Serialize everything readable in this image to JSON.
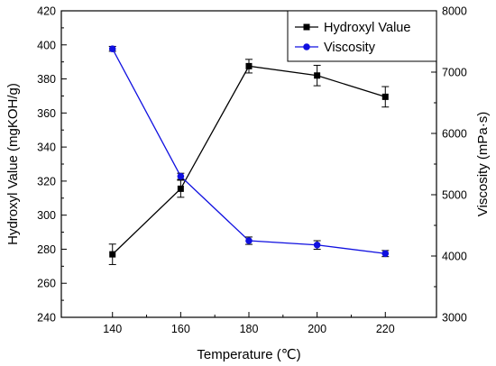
{
  "chart_data": {
    "type": "line",
    "x": [
      140,
      160,
      180,
      200,
      220
    ],
    "xlabel": "Temperature (℃)",
    "ylabel_left": "Hydroxyl Value (mgKOH/g)",
    "ylabel_right": "Viscosity (mPa·s)",
    "xlim": [
      125,
      235
    ],
    "ylim_left": [
      240,
      420
    ],
    "ylim_right": [
      3000,
      8000
    ],
    "x_ticks": [
      140,
      160,
      180,
      200,
      220
    ],
    "y_ticks_left": [
      240,
      260,
      280,
      300,
      320,
      340,
      360,
      380,
      400,
      420
    ],
    "y_ticks_right": [
      3000,
      4000,
      5000,
      6000,
      7000,
      8000
    ],
    "grid": false,
    "legend_position": "top-right",
    "series": [
      {
        "name": "Hydroxyl Value",
        "axis": "left",
        "color": "#000000",
        "marker": "square",
        "values": [
          277,
          315.5,
          387.5,
          382,
          369.5
        ],
        "errors": [
          6,
          5,
          4,
          6,
          6
        ]
      },
      {
        "name": "Viscosity",
        "axis": "right",
        "color": "#1010e0",
        "marker": "circle",
        "values": [
          7380,
          5300,
          4250,
          4180,
          4040
        ],
        "errors": [
          40,
          50,
          60,
          70,
          50
        ]
      }
    ]
  }
}
